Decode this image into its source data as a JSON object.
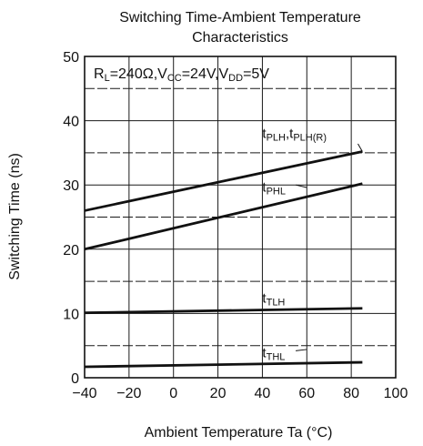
{
  "chart_data": {
    "type": "line",
    "title_lines": [
      "Switching Time-Ambient Temperature",
      "Characteristics"
    ],
    "xlabel": "Ambient Temperature  Ta (°C)",
    "ylabel": "Switching Time  (ns)",
    "xlim": [
      -40,
      100
    ],
    "ylim": [
      0,
      50
    ],
    "xticks": [
      -40,
      -20,
      0,
      20,
      40,
      60,
      80,
      100
    ],
    "xtick_labels": [
      "−40",
      "−20",
      "0",
      "20",
      "40",
      "60",
      "80",
      "100"
    ],
    "yticks": [
      0,
      10,
      20,
      30,
      40,
      50
    ],
    "grid": true,
    "condition": [
      {
        "t": "R"
      },
      {
        "t": "L",
        "sub": true
      },
      {
        "t": "=240Ω,V"
      },
      {
        "t": "CC",
        "sub": true
      },
      {
        "t": "=24V,V"
      },
      {
        "t": "DD",
        "sub": true
      },
      {
        "t": "=5V"
      }
    ],
    "series": [
      {
        "name": "tPLH,tPLH(R)",
        "label_parts": [
          {
            "t": "t"
          },
          {
            "t": "PLH",
            "sub": true
          },
          {
            "t": ",t"
          },
          {
            "t": "PLH(R)",
            "sub": true
          }
        ],
        "x": [
          -40,
          85
        ],
        "y": [
          26,
          35.2
        ],
        "label_at": [
          40,
          37.3
        ],
        "leader": [
          [
            83,
            36.4
          ],
          [
            85,
            35.2
          ]
        ]
      },
      {
        "name": "tPHL",
        "label_parts": [
          {
            "t": "t"
          },
          {
            "t": "PHL",
            "sub": true
          }
        ],
        "x": [
          -40,
          85
        ],
        "y": [
          20,
          30.2
        ],
        "label_at": [
          40,
          29.0
        ],
        "leader": [
          [
            55,
            30.0
          ],
          [
            60,
            29.6
          ]
        ]
      },
      {
        "name": "tTLH",
        "label_parts": [
          {
            "t": "t"
          },
          {
            "t": "TLH",
            "sub": true
          }
        ],
        "x": [
          -40,
          85
        ],
        "y": [
          10.1,
          10.8
        ],
        "label_at": [
          40,
          11.7
        ],
        "leader": null
      },
      {
        "name": "tTHL",
        "label_parts": [
          {
            "t": "t"
          },
          {
            "t": "THL",
            "sub": true
          }
        ],
        "x": [
          -40,
          85
        ],
        "y": [
          1.7,
          2.4
        ],
        "label_at": [
          40,
          3.2
        ],
        "leader": [
          [
            55,
            4.2
          ],
          [
            60,
            4.4
          ]
        ]
      }
    ]
  }
}
